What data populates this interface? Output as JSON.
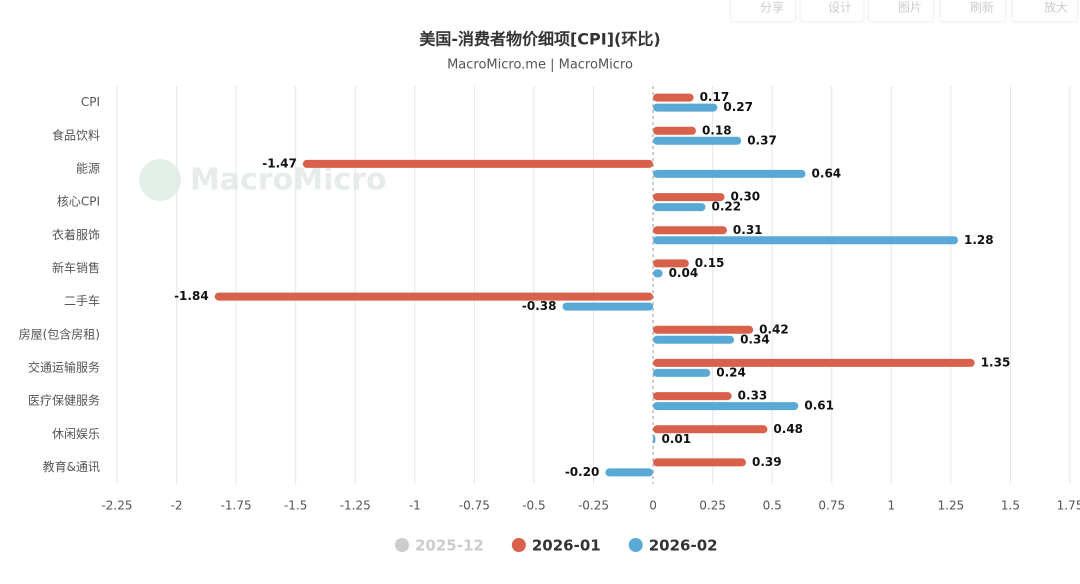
{
  "toolbar": [
    "分享",
    "设计",
    "图片",
    "刷新",
    "放大"
  ],
  "watermark": "MacroMicro",
  "chart_data": {
    "type": "hbar",
    "title": "美国-消费者物价细项[CPI](环比)",
    "subtitle": "MacroMicro.me | MacroMicro",
    "categories": [
      "CPI",
      "食品饮料",
      "能源",
      "核心CPI",
      "衣着服饰",
      "新车销售",
      "二手车",
      "房屋(包含房租)",
      "交通运输服务",
      "医疗保健服务",
      "休闲娱乐",
      "教育&通讯"
    ],
    "series": [
      {
        "name": "2025-12",
        "color": "#cccccc",
        "visible": false,
        "values": [
          null,
          null,
          null,
          null,
          null,
          null,
          null,
          null,
          null,
          null,
          null,
          null
        ]
      },
      {
        "name": "2026-01",
        "color": "#d9604a",
        "visible": true,
        "values": [
          0.17,
          0.18,
          -1.47,
          0.3,
          0.31,
          0.15,
          -1.84,
          0.42,
          1.35,
          0.33,
          0.48,
          0.39
        ],
        "value_labels": [
          "0.17",
          "0.18",
          "-1.47",
          "0.30",
          "0.31",
          "0.15",
          "-1.84",
          "0.42",
          "1.35",
          "0.33",
          "0.48",
          "0.39"
        ]
      },
      {
        "name": "2026-02",
        "color": "#59a9d6",
        "visible": true,
        "values": [
          0.27,
          0.37,
          0.64,
          0.22,
          1.28,
          0.04,
          -0.38,
          0.34,
          0.24,
          0.61,
          0.01,
          -0.2
        ],
        "value_labels": [
          "0.27",
          "0.37",
          "0.64",
          "0.22",
          "1.28",
          "0.04",
          "-0.38",
          "0.34",
          "0.24",
          "0.61",
          "0.01",
          "-0.20"
        ]
      }
    ],
    "xlim": [
      -2.25,
      1.75
    ],
    "xticks": [
      -2.25,
      -2,
      -1.75,
      -1.5,
      -1.25,
      -1,
      -0.75,
      -0.5,
      -0.25,
      0,
      0.25,
      0.5,
      0.75,
      1,
      1.25,
      1.5,
      1.75
    ],
    "grid": true
  }
}
